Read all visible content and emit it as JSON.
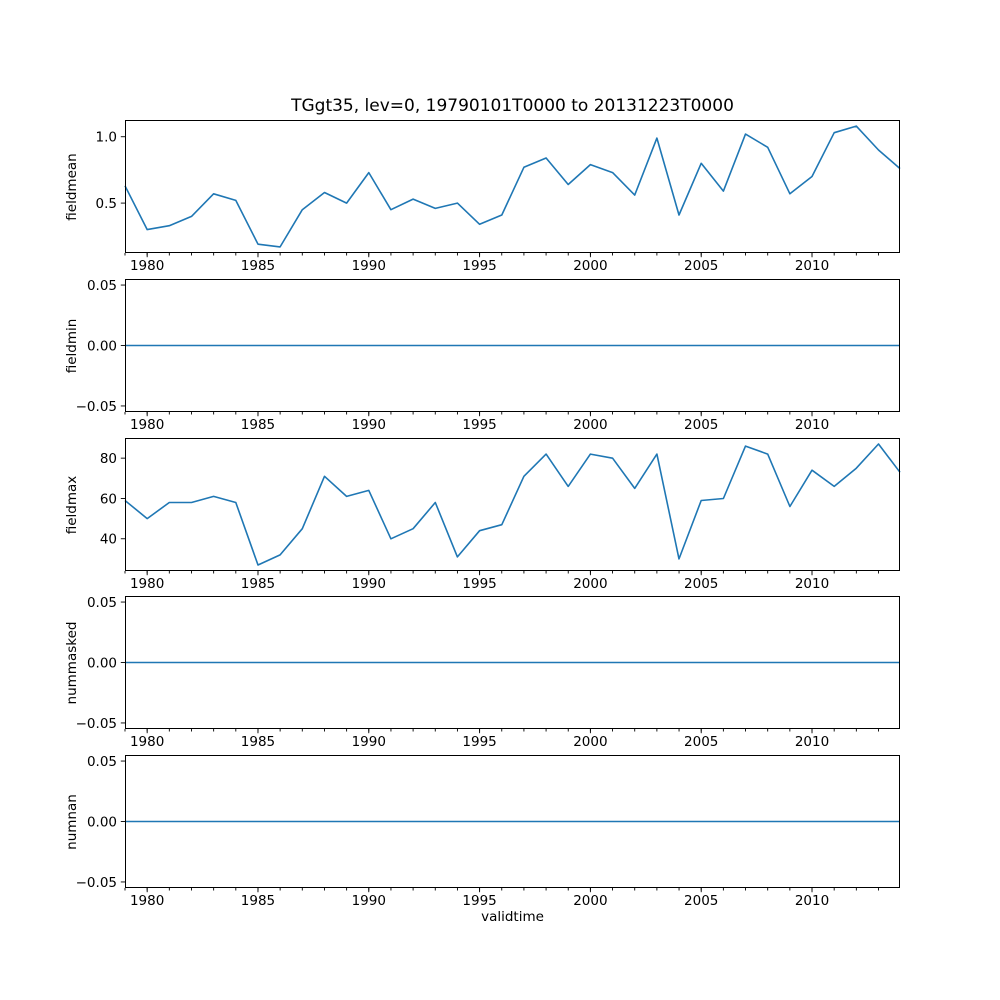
{
  "figure": {
    "title": "TGgt35, lev=0, 19790101T0000 to 20131223T0000",
    "xlabel": "validtime",
    "background_color": "#ffffff",
    "text_color": "#000000",
    "spine_color": "#000000"
  },
  "chart_data": {
    "type": "line",
    "title": "TGgt35, lev=0, 19790101T0000 to 20131223T0000",
    "xlabel": "validtime",
    "line_color": "#1f77b4",
    "grid": false,
    "legend": "none",
    "xlim": [
      1979,
      2013.97
    ],
    "xticks": [
      1980,
      1985,
      1990,
      1995,
      2000,
      2005,
      2010
    ],
    "minor_xticks": "every year",
    "x": [
      1979,
      1980,
      1981,
      1982,
      1983,
      1984,
      1985,
      1986,
      1987,
      1988,
      1989,
      1990,
      1991,
      1992,
      1993,
      1994,
      1995,
      1996,
      1997,
      1998,
      1999,
      2000,
      2001,
      2002,
      2003,
      2004,
      2005,
      2006,
      2007,
      2008,
      2009,
      2010,
      2011,
      2012,
      2013,
      2013.97
    ],
    "subplots": [
      {
        "ylabel": "fieldmean",
        "values": [
          0.63,
          0.3,
          0.33,
          0.4,
          0.57,
          0.52,
          0.19,
          0.17,
          0.45,
          0.58,
          0.5,
          0.73,
          0.45,
          0.53,
          0.46,
          0.5,
          0.34,
          0.41,
          0.77,
          0.84,
          0.64,
          0.79,
          0.73,
          0.56,
          0.99,
          0.41,
          0.8,
          0.59,
          1.02,
          0.92,
          0.57,
          0.7,
          1.03,
          1.08,
          0.9,
          0.76
        ],
        "ylim": [
          0.124,
          1.126
        ],
        "yticks": [
          1.0,
          0.5
        ],
        "ytick_labels": [
          "1.0",
          "0.5"
        ]
      },
      {
        "ylabel": "fieldmin",
        "values": [
          0,
          0,
          0,
          0,
          0,
          0,
          0,
          0,
          0,
          0,
          0,
          0,
          0,
          0,
          0,
          0,
          0,
          0,
          0,
          0,
          0,
          0,
          0,
          0,
          0,
          0,
          0,
          0,
          0,
          0,
          0,
          0,
          0,
          0,
          0,
          0
        ],
        "ylim": [
          -0.055,
          0.055
        ],
        "yticks": [
          0.05,
          0.0,
          -0.05
        ],
        "ytick_labels": [
          "0.05",
          "0.00",
          "−0.05"
        ]
      },
      {
        "ylabel": "fieldmax",
        "values": [
          59,
          50,
          58,
          58,
          61,
          58,
          27,
          32,
          45,
          71,
          61,
          64,
          40,
          45,
          58,
          31,
          44,
          47,
          71,
          82,
          66,
          82,
          80,
          65,
          82,
          30,
          59,
          60,
          86,
          82,
          56,
          74,
          66,
          75,
          87,
          73
        ],
        "ylim": [
          24,
          90
        ],
        "yticks": [
          80,
          60,
          40
        ],
        "ytick_labels": [
          "80",
          "60",
          "40"
        ]
      },
      {
        "ylabel": "nummasked",
        "values": [
          0,
          0,
          0,
          0,
          0,
          0,
          0,
          0,
          0,
          0,
          0,
          0,
          0,
          0,
          0,
          0,
          0,
          0,
          0,
          0,
          0,
          0,
          0,
          0,
          0,
          0,
          0,
          0,
          0,
          0,
          0,
          0,
          0,
          0,
          0,
          0
        ],
        "ylim": [
          -0.055,
          0.055
        ],
        "yticks": [
          0.05,
          0.0,
          -0.05
        ],
        "ytick_labels": [
          "0.05",
          "0.00",
          "−0.05"
        ]
      },
      {
        "ylabel": "numnan",
        "values": [
          0,
          0,
          0,
          0,
          0,
          0,
          0,
          0,
          0,
          0,
          0,
          0,
          0,
          0,
          0,
          0,
          0,
          0,
          0,
          0,
          0,
          0,
          0,
          0,
          0,
          0,
          0,
          0,
          0,
          0,
          0,
          0,
          0,
          0,
          0,
          0
        ],
        "ylim": [
          -0.055,
          0.055
        ],
        "yticks": [
          0.05,
          0.0,
          -0.05
        ],
        "ytick_labels": [
          "0.05",
          "0.00",
          "−0.05"
        ]
      }
    ]
  }
}
